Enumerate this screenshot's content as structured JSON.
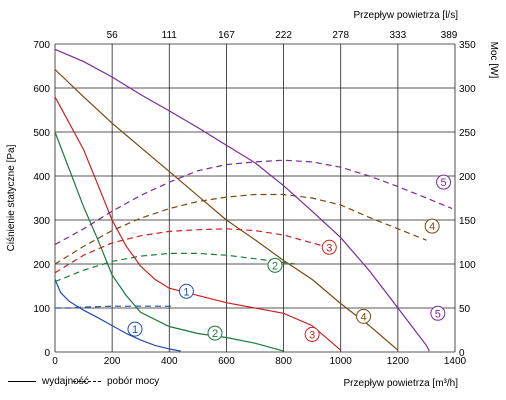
{
  "chart_data": {
    "type": "line",
    "x_label_bottom": "Przepływ powietrza [m³/h]",
    "x_label_top": "Przepływ powietrza [l/s]",
    "y_label_left": "Ciśnienie statyczne [Pa]",
    "y_label_right": "Moc [W]",
    "x_range": [
      0,
      1400
    ],
    "y_left_range": [
      0,
      700
    ],
    "y_right_range": [
      0,
      350
    ],
    "x_ticks_bottom": [
      "0",
      "200",
      "400",
      "600",
      "800",
      "1000",
      "1200",
      "1400"
    ],
    "x_ticks_top": [
      "56",
      "111",
      "167",
      "222",
      "278",
      "333",
      "389"
    ],
    "y_ticks_left": [
      "0",
      "100",
      "200",
      "300",
      "400",
      "500",
      "600",
      "700"
    ],
    "y_ticks_right": [
      "0",
      "50",
      "100",
      "150",
      "200",
      "250",
      "300",
      "350"
    ],
    "grid": true,
    "legend": {
      "solid_label": "wydajność",
      "dashed_label": "pobór mocy"
    },
    "series": [
      {
        "id": "1",
        "color": "#1f4fb0",
        "pressure": [
          [
            0,
            165
          ],
          [
            20,
            135
          ],
          [
            50,
            115
          ],
          [
            100,
            95
          ],
          [
            150,
            78
          ],
          [
            200,
            60
          ],
          [
            250,
            42
          ],
          [
            300,
            27
          ],
          [
            350,
            15
          ],
          [
            400,
            7
          ],
          [
            440,
            2
          ]
        ],
        "power": [
          [
            0,
            50
          ],
          [
            50,
            50
          ],
          [
            100,
            51
          ],
          [
            200,
            52
          ],
          [
            300,
            52
          ],
          [
            420,
            52
          ]
        ]
      },
      {
        "id": "2",
        "color": "#1a7a3a",
        "pressure": [
          [
            0,
            500
          ],
          [
            50,
            415
          ],
          [
            100,
            330
          ],
          [
            150,
            255
          ],
          [
            200,
            175
          ],
          [
            250,
            128
          ],
          [
            300,
            90
          ],
          [
            400,
            58
          ],
          [
            500,
            42
          ],
          [
            600,
            33
          ],
          [
            700,
            20
          ],
          [
            800,
            2
          ]
        ],
        "power": [
          [
            0,
            80
          ],
          [
            100,
            93
          ],
          [
            200,
            103
          ],
          [
            300,
            109
          ],
          [
            400,
            112
          ],
          [
            500,
            112
          ],
          [
            600,
            110
          ],
          [
            700,
            106
          ],
          [
            840,
            100
          ]
        ]
      },
      {
        "id": "3",
        "color": "#cc2222",
        "pressure": [
          [
            0,
            580
          ],
          [
            50,
            520
          ],
          [
            100,
            460
          ],
          [
            150,
            380
          ],
          [
            200,
            300
          ],
          [
            250,
            240
          ],
          [
            300,
            195
          ],
          [
            350,
            165
          ],
          [
            400,
            145
          ],
          [
            600,
            112
          ],
          [
            800,
            88
          ],
          [
            900,
            60
          ],
          [
            1000,
            4
          ]
        ],
        "power": [
          [
            0,
            90
          ],
          [
            100,
            110
          ],
          [
            200,
            124
          ],
          [
            300,
            132
          ],
          [
            400,
            137
          ],
          [
            500,
            139
          ],
          [
            600,
            140
          ],
          [
            700,
            138
          ],
          [
            800,
            133
          ],
          [
            900,
            124
          ],
          [
            980,
            117
          ]
        ]
      },
      {
        "id": "4",
        "color": "#7a4a10",
        "pressure": [
          [
            0,
            642
          ],
          [
            100,
            580
          ],
          [
            200,
            520
          ],
          [
            300,
            465
          ],
          [
            400,
            410
          ],
          [
            500,
            355
          ],
          [
            600,
            300
          ],
          [
            700,
            255
          ],
          [
            800,
            208
          ],
          [
            900,
            165
          ],
          [
            1000,
            110
          ],
          [
            1100,
            60
          ],
          [
            1200,
            4
          ]
        ],
        "power": [
          [
            0,
            100
          ],
          [
            100,
            120
          ],
          [
            200,
            138
          ],
          [
            300,
            152
          ],
          [
            400,
            163
          ],
          [
            500,
            171
          ],
          [
            600,
            176
          ],
          [
            700,
            179
          ],
          [
            800,
            179
          ],
          [
            900,
            175
          ],
          [
            1000,
            167
          ],
          [
            1100,
            153
          ],
          [
            1200,
            140
          ],
          [
            1300,
            127
          ]
        ]
      },
      {
        "id": "5",
        "color": "#7b2a9a",
        "pressure": [
          [
            0,
            688
          ],
          [
            100,
            660
          ],
          [
            200,
            625
          ],
          [
            300,
            585
          ],
          [
            400,
            548
          ],
          [
            500,
            510
          ],
          [
            600,
            470
          ],
          [
            700,
            430
          ],
          [
            800,
            378
          ],
          [
            900,
            320
          ],
          [
            1000,
            260
          ],
          [
            1100,
            185
          ],
          [
            1200,
            100
          ],
          [
            1300,
            15
          ],
          [
            1310,
            2
          ]
        ],
        "power": [
          [
            0,
            122
          ],
          [
            100,
            140
          ],
          [
            200,
            160
          ],
          [
            300,
            178
          ],
          [
            400,
            193
          ],
          [
            500,
            206
          ],
          [
            600,
            213
          ],
          [
            700,
            216
          ],
          [
            800,
            218
          ],
          [
            900,
            216
          ],
          [
            1000,
            210
          ],
          [
            1100,
            200
          ],
          [
            1200,
            188
          ],
          [
            1300,
            175
          ],
          [
            1390,
            163
          ]
        ]
      }
    ],
    "circle_labels": [
      {
        "id": "1",
        "color": "#1f4fb0",
        "x": 280,
        "y": 52
      },
      {
        "id": "1",
        "color": "#1f4fb0",
        "x": 460,
        "y": 138
      },
      {
        "id": "2",
        "color": "#1a7a3a",
        "x": 560,
        "y": 43
      },
      {
        "id": "2",
        "color": "#1a7a3a",
        "x": 770,
        "y": 197
      },
      {
        "id": "3",
        "color": "#cc2222",
        "x": 900,
        "y": 40
      },
      {
        "id": "3",
        "color": "#cc2222",
        "x": 960,
        "y": 238
      },
      {
        "id": "4",
        "color": "#7a4a10",
        "x": 1080,
        "y": 81
      },
      {
        "id": "4",
        "color": "#7a4a10",
        "x": 1320,
        "y": 286
      },
      {
        "id": "5",
        "color": "#7b2a9a",
        "x": 1340,
        "y": 88
      },
      {
        "id": "5",
        "color": "#7b2a9a",
        "x": 1360,
        "y": 386
      }
    ]
  }
}
